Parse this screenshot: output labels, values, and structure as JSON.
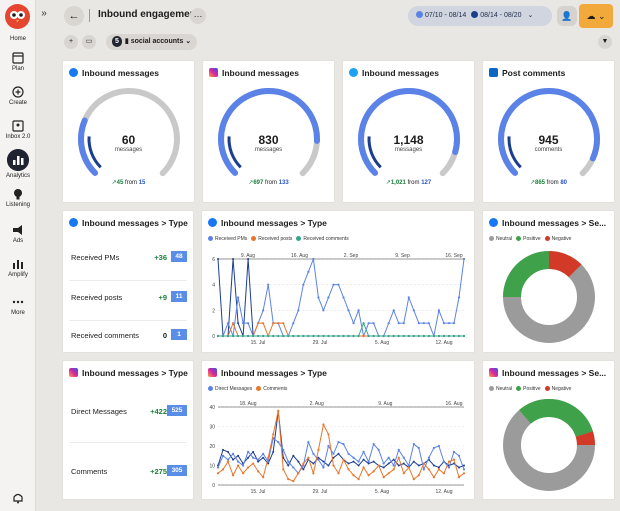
{
  "sidebar": {
    "items": [
      {
        "label": "Home"
      },
      {
        "label": "Plan"
      },
      {
        "label": "Create"
      },
      {
        "label": "Inbox 2.0"
      },
      {
        "label": "Analytics"
      },
      {
        "label": "Listening"
      },
      {
        "label": "Ads"
      },
      {
        "label": "Amplify"
      },
      {
        "label": "More"
      }
    ]
  },
  "header": {
    "title": "Inbound engagement",
    "range1": "07/10 - 08/14",
    "range2": "08/14 - 08/20",
    "range1_color": "#5b82e6",
    "range2_color": "#1b3d8f"
  },
  "filter": {
    "account_count": "5",
    "account_label": "social accounts"
  },
  "gauges": [
    {
      "title": "Inbound messages",
      "network": "facebook",
      "value": "60",
      "unit": "messages",
      "delta": "45",
      "from_text": "from",
      "from": "15",
      "fill": 0.25
    },
    {
      "title": "Inbound messages",
      "network": "instagram",
      "value": "830",
      "unit": "messages",
      "delta": "697",
      "from_text": "from",
      "from": "133",
      "fill": 0.84
    },
    {
      "title": "Inbound messages",
      "network": "twitter",
      "value": "1,148",
      "unit": "messages",
      "delta": "1,021",
      "from_text": "from",
      "from": "127",
      "fill": 0.89
    },
    {
      "title": "Post comments",
      "network": "linkedin",
      "value": "945",
      "unit": "comments",
      "delta": "865",
      "from_text": "from",
      "from": "80",
      "fill": 0.92
    }
  ],
  "type_cards": [
    {
      "title": "Inbound messages > Type",
      "network": "facebook",
      "rows": [
        {
          "label": "Received PMs",
          "delta": "+36",
          "value": "48"
        },
        {
          "label": "Received posts",
          "delta": "+9",
          "value": "11"
        },
        {
          "label": "Received comments",
          "delta": "0",
          "value": "1"
        }
      ]
    },
    {
      "title": "Inbound messages > Type",
      "network": "instagram",
      "rows": [
        {
          "label": "Direct Messages",
          "delta": "+422",
          "value": "525"
        },
        {
          "label": "Comments",
          "delta": "+275",
          "value": "305"
        }
      ]
    }
  ],
  "donuts": [
    {
      "title": "Inbound messages > Se...",
      "network": "facebook",
      "legend": [
        "Neutral",
        "Positive",
        "Negative"
      ]
    },
    {
      "title": "Inbound messages > Se...",
      "network": "instagram",
      "legend": [
        "Neutral",
        "Positive",
        "Negative"
      ]
    }
  ],
  "colors": {
    "neutral": "#9b9b9b",
    "positive": "#3fa14a",
    "negative": "#d23a27",
    "gauge_fill": "#5b82e6",
    "gauge_track": "#c9c9c9"
  },
  "chart_data": [
    {
      "type": "line",
      "title": "Inbound messages > Type",
      "network": "facebook",
      "x_top": [
        "9. Aug",
        "16. Aug",
        "2. Sep",
        "9. Sep",
        "16. Sep"
      ],
      "x_bottom": [
        "15. Jul",
        "29. Jul",
        "5. Aug",
        "12. Aug"
      ],
      "y_ticks": [
        "0",
        "2",
        "4",
        "6"
      ],
      "ylim": [
        0,
        6
      ],
      "series": [
        {
          "name": "Received PMs",
          "color": "#5b82e6",
          "values": [
            0,
            0,
            1,
            0,
            3,
            1,
            1,
            0,
            1,
            2,
            4,
            1,
            1,
            0,
            0,
            1,
            2,
            4,
            5,
            6,
            3,
            2,
            3,
            4,
            4,
            3,
            2,
            1,
            2,
            0,
            1,
            1,
            0,
            0,
            1,
            2,
            1,
            1,
            3,
            2,
            1,
            1,
            1,
            0,
            2,
            1,
            1,
            1,
            3,
            6
          ]
        },
        {
          "name": "Received posts",
          "color": "#e8762c",
          "values": [
            0,
            0,
            0,
            1,
            0,
            0,
            0,
            0,
            1,
            1,
            0,
            1,
            1,
            1,
            0,
            0,
            0,
            0,
            0,
            0,
            0,
            0,
            0,
            0,
            0,
            0,
            0,
            0,
            0,
            0,
            0,
            0,
            0,
            0,
            0,
            0,
            0,
            0,
            0,
            0,
            0,
            0,
            0,
            0,
            0,
            0,
            0,
            0,
            0,
            0
          ]
        },
        {
          "name": "Received comments",
          "color": "#35a68e",
          "values": [
            0,
            0,
            0,
            0,
            0,
            0,
            0,
            0,
            0,
            0,
            0,
            0,
            0,
            0,
            0,
            0,
            0,
            0,
            0,
            0,
            0,
            0,
            0,
            0,
            0,
            0,
            0,
            0,
            0,
            1,
            0,
            0,
            0,
            0,
            0,
            0,
            0,
            0,
            0,
            0,
            0,
            0,
            0,
            0,
            0,
            0,
            0,
            0,
            0,
            0
          ]
        }
      ],
      "comparison": {
        "color": "#1b3d8f",
        "values": [
          6,
          0,
          0,
          6,
          1,
          0,
          6,
          0,
          0,
          0,
          0,
          0,
          0,
          0,
          0,
          0,
          0,
          0,
          0,
          0,
          0,
          0,
          0,
          0,
          0,
          0,
          0,
          0,
          0,
          0,
          0,
          0,
          0,
          0,
          0,
          0,
          0,
          0,
          0,
          0,
          0,
          0,
          0,
          0,
          0,
          0,
          0,
          0,
          0,
          0
        ]
      }
    },
    {
      "type": "line",
      "title": "Inbound messages > Type",
      "network": "instagram",
      "x_top": [
        "18. Aug",
        "2. Aug",
        "9. Aug",
        "16. Aug"
      ],
      "x_bottom": [
        "15. Jul",
        "29. Jul",
        "5. Aug",
        "12. Aug"
      ],
      "y_ticks": [
        "0",
        "10",
        "20",
        "30",
        "40"
      ],
      "ylim": [
        0,
        40
      ],
      "series": [
        {
          "name": "Direct Messages",
          "color": "#5b82e6",
          "values": [
            9,
            15,
            13,
            16,
            12,
            10,
            17,
            14,
            13,
            16,
            12,
            24,
            22,
            18,
            12,
            9,
            6,
            10,
            22,
            16,
            13,
            9,
            20,
            16,
            22,
            21,
            16,
            14,
            12,
            17,
            12,
            21,
            18,
            11,
            14,
            10,
            18,
            14,
            10,
            21,
            19,
            8,
            14,
            19,
            20,
            12,
            9,
            17,
            15,
            8
          ]
        },
        {
          "name": "Comments",
          "color": "#e8762c",
          "values": [
            6,
            8,
            12,
            5,
            10,
            6,
            9,
            11,
            7,
            4,
            14,
            26,
            38,
            8,
            3,
            2,
            6,
            11,
            14,
            6,
            18,
            31,
            26,
            10,
            6,
            13,
            8,
            5,
            3,
            9,
            5,
            7,
            10,
            4,
            6,
            8,
            14,
            6,
            9,
            3,
            5,
            11,
            8,
            4,
            8,
            6,
            12,
            13,
            4,
            6
          ]
        }
      ],
      "comparison": {
        "color": "#1b3d8f",
        "values": [
          10,
          18,
          17,
          13,
          15,
          11,
          14,
          17,
          12,
          14,
          11,
          17,
          38,
          14,
          10,
          15,
          12,
          8,
          13,
          11,
          14,
          12,
          10,
          14,
          16,
          13,
          11,
          12,
          10,
          13,
          11,
          12,
          10,
          9,
          11,
          13,
          10,
          11,
          9,
          12,
          10,
          11,
          13,
          10,
          9,
          12,
          10,
          11,
          9,
          10
        ]
      }
    }
  ]
}
